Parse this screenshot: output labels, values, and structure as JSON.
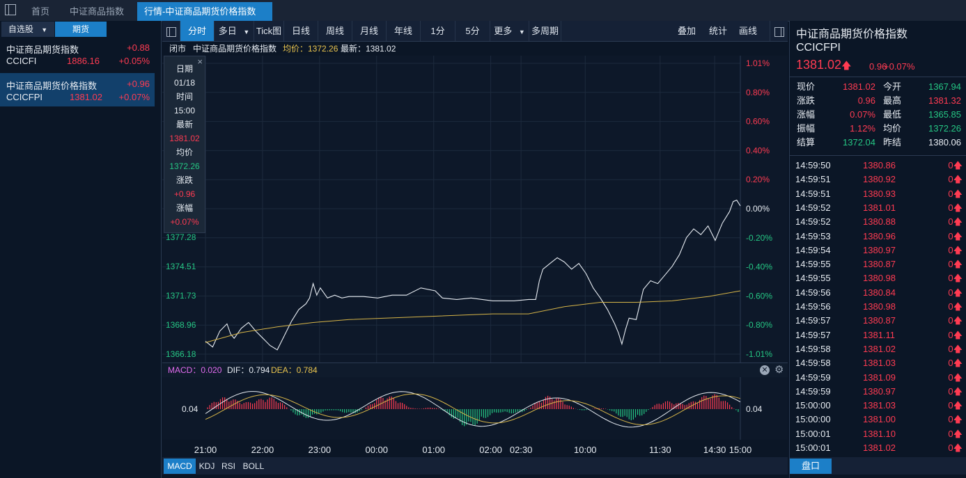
{
  "tabs": {
    "home": "首页",
    "index": "中证商品指数",
    "active": "行情-中证商品期货价格指数",
    "close": "×"
  },
  "left": {
    "tab_watchlist": "自选股",
    "tab_futures": "期货",
    "items": [
      {
        "name": "中证商品期货指数",
        "change": "+0.88",
        "code": "CCICFI",
        "price": "1886.16",
        "pct": "+0.05%"
      },
      {
        "name": "中证商品期货价格指数",
        "change": "+0.96",
        "code": "CCICFPI",
        "price": "1381.02",
        "pct": "+0.07%"
      }
    ]
  },
  "toolbar": {
    "buttons": [
      "分时",
      "多日",
      "Tick图",
      "日线",
      "周线",
      "月线",
      "年线",
      "1分",
      "5分",
      "更多",
      "多周期"
    ],
    "right": [
      "叠加",
      "统计",
      "画线"
    ]
  },
  "info": {
    "status": "闭市",
    "name": "中证商品期货价格指数",
    "avg": "均价：1372.26",
    "latest": "最新：1381.02"
  },
  "infobox": {
    "close": "×",
    "rows": [
      {
        "label": "日期",
        "value": "01/18"
      },
      {
        "label": "时间",
        "value": "15:00"
      },
      {
        "label": "最新",
        "value": "1381.02"
      },
      {
        "label": "均价",
        "value": "1372.26"
      },
      {
        "label": "涨跌",
        "value": "+0.96"
      },
      {
        "label": "涨幅",
        "value": "+0.07%"
      }
    ]
  },
  "macd": {
    "macd": "MACD：0.020",
    "dif": "DIF：0.794",
    "dea": "DEA：0.784",
    "level": "0.04"
  },
  "bottom_tabs": [
    "MACD",
    "KDJ",
    "RSI",
    "BOLL"
  ],
  "right": {
    "title": "中证商品期货价格指数",
    "code": "CCICFPI",
    "price": "1381.02",
    "change": "0.96",
    "pct": "+0.07%",
    "quote": [
      {
        "l1": "现价",
        "v1": "1381.02",
        "l2": "今开",
        "v2": "1367.94"
      },
      {
        "l1": "涨跌",
        "v1": "0.96",
        "l2": "最高",
        "v2": "1381.32"
      },
      {
        "l1": "涨幅",
        "v1": "0.07%",
        "l2": "最低",
        "v2": "1365.85"
      },
      {
        "l1": "振幅",
        "v1": "1.12%",
        "l2": "均价",
        "v2": "1372.26"
      },
      {
        "l1": "结算",
        "v1": "1372.04",
        "l2": "昨结",
        "v2": "1380.06"
      }
    ],
    "ticks": [
      {
        "t": "14:59:50",
        "p": "1380.86",
        "v": "0"
      },
      {
        "t": "14:59:51",
        "p": "1380.92",
        "v": "0"
      },
      {
        "t": "14:59:51",
        "p": "1380.93",
        "v": "0"
      },
      {
        "t": "14:59:52",
        "p": "1381.01",
        "v": "0"
      },
      {
        "t": "14:59:52",
        "p": "1380.88",
        "v": "0"
      },
      {
        "t": "14:59:53",
        "p": "1380.96",
        "v": "0"
      },
      {
        "t": "14:59:54",
        "p": "1380.97",
        "v": "0"
      },
      {
        "t": "14:59:55",
        "p": "1380.87",
        "v": "0"
      },
      {
        "t": "14:59:55",
        "p": "1380.98",
        "v": "0"
      },
      {
        "t": "14:59:56",
        "p": "1380.84",
        "v": "0"
      },
      {
        "t": "14:59:56",
        "p": "1380.98",
        "v": "0"
      },
      {
        "t": "14:59:57",
        "p": "1380.87",
        "v": "0"
      },
      {
        "t": "14:59:57",
        "p": "1381.11",
        "v": "0"
      },
      {
        "t": "14:59:58",
        "p": "1381.02",
        "v": "0"
      },
      {
        "t": "14:59:58",
        "p": "1381.03",
        "v": "0"
      },
      {
        "t": "14:59:59",
        "p": "1381.09",
        "v": "0"
      },
      {
        "t": "14:59:59",
        "p": "1380.97",
        "v": "0"
      },
      {
        "t": "15:00:00",
        "p": "1381.03",
        "v": "0"
      },
      {
        "t": "15:00:00",
        "p": "1381.00",
        "v": "0"
      },
      {
        "t": "15:00:01",
        "p": "1381.10",
        "v": "0"
      },
      {
        "t": "15:00:01",
        "p": "1381.02",
        "v": "0"
      }
    ],
    "panel_tab": "盘口"
  },
  "chart_data": {
    "type": "line",
    "y_left_ticks": [
      "1377.28",
      "1374.51",
      "1371.73",
      "1368.96",
      "1366.18"
    ],
    "y_right_ticks": [
      "1.01%",
      "0.80%",
      "0.60%",
      "0.40%",
      "0.20%",
      "0.00%",
      "-0.20%",
      "-0.40%",
      "-0.60%",
      "-0.80%",
      "-1.01%"
    ],
    "x_ticks": [
      "21:00",
      "22:00",
      "23:00",
      "00:00",
      "01:00",
      "02:00",
      "02:30",
      "10:00",
      "11:30",
      "14:30",
      "15:00"
    ],
    "ylim_pct": [
      -1.01,
      1.01
    ],
    "colors": {
      "price": "#e8edf3",
      "avg": "#d8b648",
      "up": "#ff3b52",
      "down": "#25c784"
    },
    "price_pct_path": [
      [
        0.0,
        -0.92
      ],
      [
        0.01,
        -0.96
      ],
      [
        0.02,
        -0.85
      ],
      [
        0.03,
        -0.8
      ],
      [
        0.035,
        -0.87
      ],
      [
        0.04,
        -0.9
      ],
      [
        0.05,
        -0.83
      ],
      [
        0.06,
        -0.79
      ],
      [
        0.07,
        -0.85
      ],
      [
        0.08,
        -0.9
      ],
      [
        0.09,
        -0.95
      ],
      [
        0.1,
        -0.98
      ],
      [
        0.11,
        -0.88
      ],
      [
        0.12,
        -0.78
      ],
      [
        0.13,
        -0.7
      ],
      [
        0.14,
        -0.66
      ],
      [
        0.145,
        -0.62
      ],
      [
        0.15,
        -0.52
      ],
      [
        0.155,
        -0.6
      ],
      [
        0.16,
        -0.55
      ],
      [
        0.17,
        -0.62
      ],
      [
        0.18,
        -0.6
      ],
      [
        0.19,
        -0.62
      ],
      [
        0.2,
        -0.61
      ],
      [
        0.22,
        -0.61
      ],
      [
        0.24,
        -0.62
      ],
      [
        0.26,
        -0.6
      ],
      [
        0.28,
        -0.6
      ],
      [
        0.3,
        -0.55
      ],
      [
        0.32,
        -0.57
      ],
      [
        0.33,
        -0.62
      ],
      [
        0.35,
        -0.63
      ],
      [
        0.37,
        -0.62
      ],
      [
        0.4,
        -0.64
      ],
      [
        0.43,
        -0.64
      ],
      [
        0.45,
        -0.63
      ],
      [
        0.46,
        -0.63
      ],
      [
        0.465,
        -0.5
      ],
      [
        0.47,
        -0.42
      ],
      [
        0.48,
        -0.38
      ],
      [
        0.49,
        -0.34
      ],
      [
        0.5,
        -0.37
      ],
      [
        0.51,
        -0.42
      ],
      [
        0.52,
        -0.38
      ],
      [
        0.53,
        -0.45
      ],
      [
        0.54,
        -0.55
      ],
      [
        0.55,
        -0.62
      ],
      [
        0.56,
        -0.7
      ],
      [
        0.57,
        -0.8
      ],
      [
        0.575,
        -0.86
      ],
      [
        0.58,
        -0.94
      ],
      [
        0.585,
        -0.84
      ],
      [
        0.59,
        -0.76
      ],
      [
        0.6,
        -0.77
      ],
      [
        0.61,
        -0.56
      ],
      [
        0.62,
        -0.5
      ],
      [
        0.63,
        -0.52
      ],
      [
        0.64,
        -0.46
      ],
      [
        0.65,
        -0.4
      ],
      [
        0.66,
        -0.32
      ],
      [
        0.67,
        -0.2
      ],
      [
        0.68,
        -0.14
      ],
      [
        0.69,
        -0.18
      ],
      [
        0.7,
        -0.12
      ],
      [
        0.71,
        -0.22
      ],
      [
        0.72,
        -0.1
      ],
      [
        0.73,
        -0.02
      ],
      [
        0.735,
        0.05
      ],
      [
        0.74,
        0.06
      ],
      [
        0.745,
        0.02
      ]
    ],
    "avg_pct_path": [
      [
        0.0,
        -0.93
      ],
      [
        0.05,
        -0.86
      ],
      [
        0.1,
        -0.82
      ],
      [
        0.15,
        -0.79
      ],
      [
        0.2,
        -0.77
      ],
      [
        0.3,
        -0.75
      ],
      [
        0.4,
        -0.73
      ],
      [
        0.45,
        -0.73
      ],
      [
        0.5,
        -0.68
      ],
      [
        0.55,
        -0.65
      ],
      [
        0.6,
        -0.65
      ],
      [
        0.65,
        -0.64
      ],
      [
        0.7,
        -0.61
      ],
      [
        0.745,
        -0.57
      ]
    ]
  }
}
